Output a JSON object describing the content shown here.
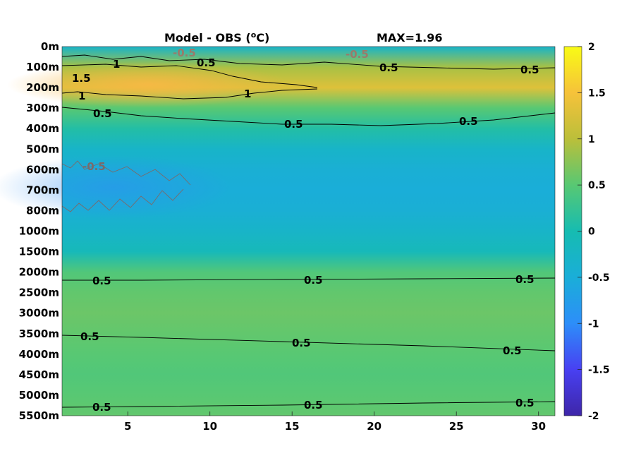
{
  "chart_data": {
    "type": "heatmap",
    "title_left": "Model - OBS (",
    "title_unit_sup": "o",
    "title_unit_end": "C)",
    "title_right": "MAX=1.96",
    "xlim": [
      1,
      31
    ],
    "x_ticks": [
      5,
      10,
      15,
      20,
      25,
      30
    ],
    "y_tick_labels": [
      "0m",
      "100m",
      "200m",
      "300m",
      "400m",
      "500m",
      "600m",
      "700m",
      "800m",
      "1000m",
      "1500m",
      "2000m",
      "2500m",
      "3000m",
      "3500m",
      "4000m",
      "4500m",
      "5000m",
      "5500m"
    ],
    "colorbar": {
      "range": [
        -2,
        2
      ],
      "ticks": [
        "2",
        "1.5",
        "1",
        "0.5",
        "0",
        "-0.5",
        "-1",
        "-1.5",
        "-2"
      ],
      "colormap": "parula"
    },
    "grid": false,
    "depth_profile": [
      {
        "depth": "0m",
        "value": -0.3
      },
      {
        "depth": "100m",
        "value": 0.9
      },
      {
        "depth": "200m",
        "value": 1.3
      },
      {
        "depth": "300m",
        "value": 0.5
      },
      {
        "depth": "400m",
        "value": 0.1
      },
      {
        "depth": "500m",
        "value": -0.3
      },
      {
        "depth": "600m",
        "value": -0.45
      },
      {
        "depth": "700m",
        "value": -0.5
      },
      {
        "depth": "800m",
        "value": -0.45
      },
      {
        "depth": "1000m",
        "value": -0.3
      },
      {
        "depth": "1500m",
        "value": -0.1
      },
      {
        "depth": "2000m",
        "value": 0.45
      },
      {
        "depth": "2500m",
        "value": 0.55
      },
      {
        "depth": "3000m",
        "value": 0.6
      },
      {
        "depth": "3500m",
        "value": 0.55
      },
      {
        "depth": "4000m",
        "value": 0.5
      },
      {
        "depth": "4500m",
        "value": 0.45
      },
      {
        "depth": "5000m",
        "value": 0.5
      },
      {
        "depth": "5500m",
        "value": 0.55
      }
    ],
    "contour_labels": [
      {
        "text": "0.5",
        "level": 0.5
      },
      {
        "text": "1",
        "level": 1
      },
      {
        "text": "1.5",
        "level": 1.5
      },
      {
        "text": "-0.5",
        "level": -0.5
      }
    ]
  }
}
